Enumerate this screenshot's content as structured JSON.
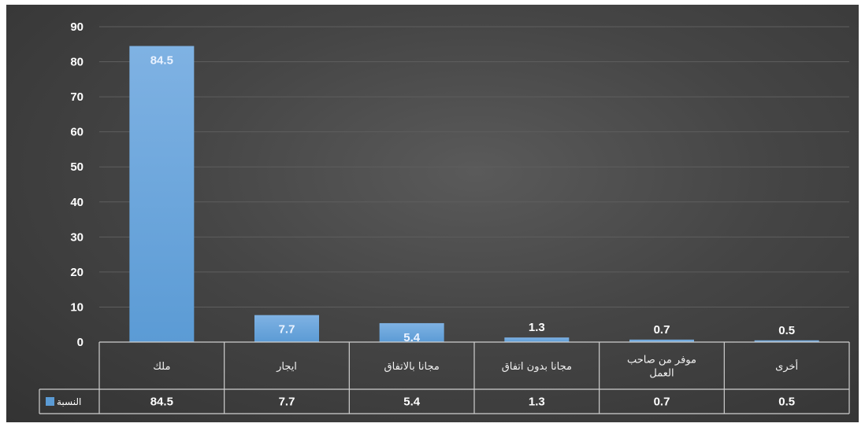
{
  "chart_data": {
    "type": "bar",
    "categories": [
      "ملك",
      "ايجار",
      "مجانا بالاتفاق",
      "مجانا بدون اتفاق",
      "موفر من صاحب العمل",
      "أخرى"
    ],
    "category_lines": [
      [
        "ملك"
      ],
      [
        "ايجار"
      ],
      [
        "مجانا بالاتفاق"
      ],
      [
        "مجانا بدون اتفاق"
      ],
      [
        "موفر من صاحب",
        "العمل"
      ],
      [
        "أخرى"
      ]
    ],
    "series": [
      {
        "name": "النسبة",
        "values": [
          84.5,
          7.7,
          5.4,
          1.3,
          0.7,
          0.5
        ]
      }
    ],
    "ylim": [
      0,
      90
    ],
    "yticks": [
      0,
      10,
      20,
      30,
      40,
      50,
      60,
      70,
      80,
      90
    ],
    "grid": true,
    "legend": "in data table",
    "data_table": true,
    "colors": {
      "bar": "#5b9bd5",
      "bar_top": "#7fb2e3",
      "background": "#404040",
      "grid": "#5e5e5e",
      "table_lines": "#cfcfcf"
    }
  }
}
